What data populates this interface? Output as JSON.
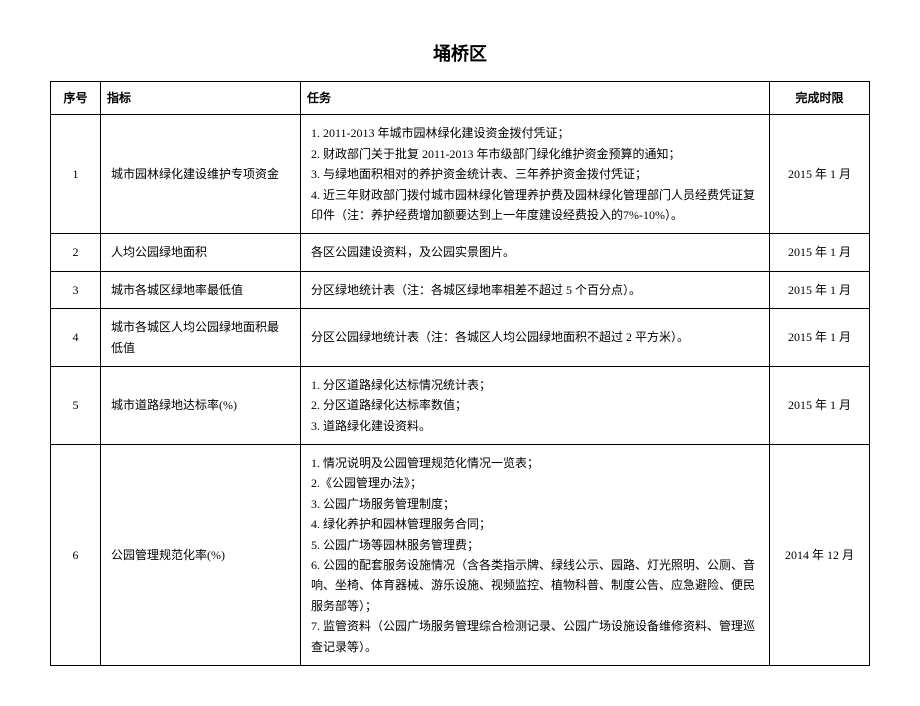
{
  "title": "埇桥区",
  "columns": {
    "num": "序号",
    "indicator": "指标",
    "task": "任务",
    "deadline": "完成时限"
  },
  "rows": [
    {
      "num": "1",
      "indicator": "城市园林绿化建设维护专项资金",
      "task": [
        "1. 2011-2013 年城市园林绿化建设资金拨付凭证；",
        "2. 财政部门关于批复 2011-2013 年市级部门绿化维护资金预算的通知；",
        "3. 与绿地面积相对的养护资金统计表、三年养护资金拨付凭证；",
        "4. 近三年财政部门拨付城市园林绿化管理养护费及园林绿化管理部门人员经费凭证复印件（注：养护经费增加额要达到上一年度建设经费投入的7%-10%）。"
      ],
      "deadline": "2015 年 1 月"
    },
    {
      "num": "2",
      "indicator": "人均公园绿地面积",
      "task": [
        "各区公园建设资料，及公园实景图片。"
      ],
      "deadline": "2015 年 1 月"
    },
    {
      "num": "3",
      "indicator": "城市各城区绿地率最低值",
      "task": [
        "分区绿地统计表（注：各城区绿地率相差不超过 5 个百分点）。"
      ],
      "deadline": "2015 年 1 月"
    },
    {
      "num": "4",
      "indicator": "城市各城区人均公园绿地面积最低值",
      "task": [
        "分区公园绿地统计表（注：各城区人均公园绿地面积不超过 2 平方米）。"
      ],
      "deadline": "2015 年 1 月"
    },
    {
      "num": "5",
      "indicator": "城市道路绿地达标率(%)",
      "task": [
        "1. 分区道路绿化达标情况统计表；",
        "2. 分区道路绿化达标率数值；",
        "3. 道路绿化建设资料。"
      ],
      "deadline": "2015 年 1 月"
    },
    {
      "num": "6",
      "indicator": "公园管理规范化率(%)",
      "task": [
        "1. 情况说明及公园管理规范化情况一览表；",
        "2.《公园管理办法》；",
        "3. 公园广场服务管理制度；",
        "4. 绿化养护和园林管理服务合同；",
        "5. 公园广场等园林服务管理费；",
        "6. 公园的配套服务设施情况（含各类指示牌、绿线公示、园路、灯光照明、公厕、音响、坐椅、体育器械、游乐设施、视频监控、植物科普、制度公告、应急避险、便民服务部等）；",
        "7. 监管资料（公园广场服务管理综合检测记录、公园广场设施设备维修资料、管理巡查记录等）。"
      ],
      "deadline": "2014 年 12 月"
    }
  ]
}
